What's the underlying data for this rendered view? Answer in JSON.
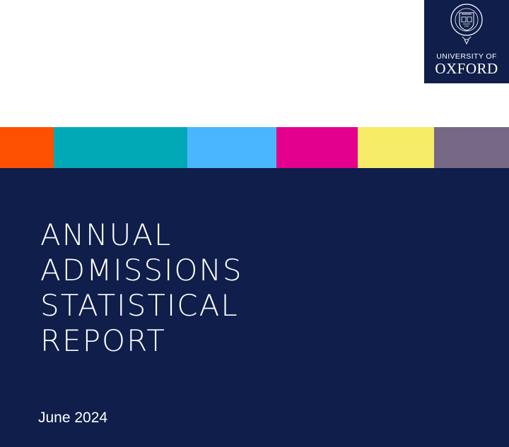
{
  "logo": {
    "line1": "UNIVERSITY OF",
    "line2": "OXFORD",
    "background": "#0f1e4a",
    "crest_icon": "oxford-crest-icon"
  },
  "stripe_colors": [
    "#fe5000",
    "#00a9b5",
    "#49b6ff",
    "#e4008c",
    "#f7ec67",
    "#776885"
  ],
  "cover": {
    "background": "#0f1e4a",
    "title_lines": [
      "ANNUAL",
      "ADMISSIONS",
      "STATISTICAL",
      "REPORT"
    ],
    "date": "June 2024"
  }
}
